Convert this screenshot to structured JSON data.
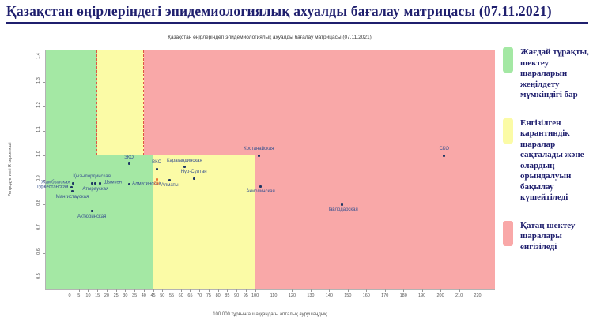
{
  "page_title": "Қазақстан өңірлеріндегі эпидемиологиялық ахуалды бағалау матрицасы  (07.11.2021)",
  "colors": {
    "zone_green": "#a4e8a4",
    "zone_yellow": "#fbfba6",
    "zone_red": "#f9a8a8",
    "dash_line": "#e05544",
    "marker": "#1f3864",
    "point_label": "#3a5390",
    "accent": "#e97132",
    "title_navy": "#1f1f6e"
  },
  "chart_data": {
    "type": "scatter",
    "title": "Қазақстан өңірлеріндегі эпидемиологиялық ахуалды бағалау матрицасы  (07.11.2021)",
    "xlabel": "100 000 тұрғынға шаққандағы апталық аурушаңдық",
    "ylabel": "Репродуктивті R көрсеткіші",
    "xlim": [
      0,
      230
    ],
    "ylim": [
      0.45,
      1.43
    ],
    "x_ticks": [
      0,
      5,
      10,
      15,
      20,
      25,
      30,
      35,
      40,
      45,
      50,
      55,
      60,
      65,
      70,
      75,
      80,
      85,
      90,
      95,
      100,
      110,
      120,
      130,
      140,
      150,
      160,
      170,
      180,
      190,
      200,
      210,
      220
    ],
    "y_ticks": [
      0.5,
      0.6,
      0.7,
      0.8,
      0.9,
      1.0,
      1.1,
      1.2,
      1.3,
      1.4
    ],
    "grid": false,
    "r_threshold": 1.0,
    "zone_boundaries": {
      "above_r1": [
        15,
        40
      ],
      "below_r1": [
        45,
        100
      ]
    },
    "points": [
      {
        "name": "ЗКО",
        "x": 32,
        "y": 0.965,
        "label_pos": "above",
        "accent": false
      },
      {
        "name": "Қызылординская",
        "x": 12,
        "y": 0.887,
        "label_pos": "above",
        "accent": false
      },
      {
        "name": "Атырауская",
        "x": 14,
        "y": 0.884,
        "label_pos": "below",
        "accent": false
      },
      {
        "name": "Шымкент",
        "x": 16.5,
        "y": 0.886,
        "label_pos": "right",
        "accent": false
      },
      {
        "name": "Алматинская",
        "x": 32,
        "y": 0.881,
        "label_pos": "right",
        "accent": false
      },
      {
        "name": "Жамбылская",
        "x": 2,
        "y": 0.887,
        "label_pos": "left",
        "accent": false
      },
      {
        "name": "Туркестанская",
        "x": 1,
        "y": 0.868,
        "label_pos": "left",
        "accent": false
      },
      {
        "name": "Мангистауская",
        "x": 1.5,
        "y": 0.852,
        "label_pos": "below",
        "accent": false
      },
      {
        "name": "Актюбинская",
        "x": 12,
        "y": 0.771,
        "label_pos": "below",
        "accent": false
      },
      {
        "name": "ВКО",
        "x": 47,
        "y": 0.945,
        "label_pos": "above",
        "accent": false
      },
      {
        "name": "РК",
        "x": 47,
        "y": 0.902,
        "label_pos": "below",
        "accent": true
      },
      {
        "name": "Карагандинская",
        "x": 62,
        "y": 0.952,
        "label_pos": "above",
        "accent": false
      },
      {
        "name": "Нұр-Сұлтан",
        "x": 67,
        "y": 0.906,
        "label_pos": "above",
        "accent": false
      },
      {
        "name": "Алматы",
        "x": 54,
        "y": 0.899,
        "label_pos": "below",
        "accent": false
      },
      {
        "name": "Костанайская",
        "x": 102,
        "y": 1.0,
        "label_pos": "above",
        "accent": false
      },
      {
        "name": "СКО",
        "x": 202,
        "y": 1.0,
        "label_pos": "above",
        "accent": false
      },
      {
        "name": "Акмолинская",
        "x": 103,
        "y": 0.873,
        "label_pos": "below",
        "accent": false
      },
      {
        "name": "Павлодарская",
        "x": 147,
        "y": 0.799,
        "label_pos": "below",
        "accent": false
      }
    ]
  },
  "legend": {
    "items": [
      {
        "zone": "green",
        "text": "Жағдай тұрақты, шектеу шараларын жеңілдету мүмкіндігі бар"
      },
      {
        "zone": "yellow",
        "text": "Енгізілген карантиндік шаралар сақталады және олардың орындалуын бақылау күшейтіледі"
      },
      {
        "zone": "red",
        "text": "Қатаң шектеу шаралары енгізіледі"
      }
    ]
  }
}
